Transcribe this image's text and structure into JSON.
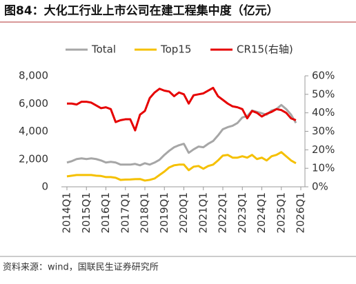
{
  "chart_data": {
    "type": "line",
    "title": "图84：大化工行业上市公司在建工程集中度（亿元）",
    "source": "资料来源：wind，国联民生证券研究所",
    "categories": [
      "2014Q1",
      null,
      null,
      null,
      "2015Q1",
      null,
      null,
      null,
      "2016Q1",
      null,
      null,
      null,
      "2017Q1",
      null,
      null,
      null,
      "2018Q1",
      null,
      null,
      null,
      "2019Q1",
      null,
      null,
      null,
      "2020Q1",
      null,
      null,
      null,
      "2021Q1",
      null,
      null,
      null,
      "2022Q1",
      null,
      null,
      null,
      "2023Q1",
      null,
      null,
      null,
      "2024Q1",
      null,
      null,
      null,
      "2025Q1",
      null,
      null,
      null,
      "2026Q1"
    ],
    "series": [
      {
        "name": "Total",
        "color": "#a6a6a6",
        "values": [
          1750,
          1850,
          2000,
          2050,
          2000,
          2050,
          2000,
          1900,
          1750,
          1800,
          1750,
          1600,
          1600,
          1600,
          1650,
          1550,
          1700,
          1600,
          1750,
          1950,
          2300,
          2600,
          2850,
          3000,
          3100,
          2450,
          2700,
          2900,
          2850,
          3100,
          3300,
          3700,
          4150,
          4300,
          4400,
          4600,
          5000,
          5100,
          5500,
          5400,
          5300,
          5200,
          5500,
          5600,
          5900,
          5600,
          5200,
          4600,
          null
        ]
      },
      {
        "name": "Top15",
        "color": "#f5c000",
        "values": [
          750,
          800,
          850,
          850,
          850,
          850,
          800,
          780,
          700,
          700,
          650,
          500,
          520,
          530,
          550,
          560,
          450,
          500,
          600,
          850,
          1100,
          1400,
          1550,
          1600,
          1600,
          1200,
          1450,
          1500,
          1300,
          1500,
          1600,
          1900,
          2250,
          2300,
          2100,
          2100,
          2200,
          2100,
          2300,
          2000,
          2100,
          1900,
          2200,
          2300,
          2500,
          2200,
          1900,
          1700,
          null
        ]
      },
      {
        "name": "CR15(右轴)",
        "color": "#e60000",
        "axis": "y2",
        "values": [
          45,
          45,
          44.5,
          46,
          46,
          45.5,
          44,
          42.5,
          43,
          42,
          35,
          36,
          36.5,
          36.5,
          30.5,
          39,
          41,
          48,
          51,
          53,
          52,
          51.5,
          49,
          51,
          50,
          45,
          49.5,
          50,
          50.5,
          52,
          53.5,
          49,
          47,
          45,
          43.5,
          43,
          42,
          37,
          41,
          40,
          38,
          39.5,
          40.5,
          42,
          41.5,
          40,
          37,
          36,
          null
        ]
      }
    ],
    "ylim": [
      0,
      8000
    ],
    "yticks": [
      0,
      {
        "value": 2000,
        "label": "2,000"
      },
      {
        "value": 4000,
        "label": "4,000"
      },
      {
        "value": 6000,
        "label": "6,000"
      },
      {
        "value": 8000,
        "label": "8,000"
      }
    ],
    "y2lim": [
      0,
      60
    ],
    "y2ticks": [
      {
        "value": 0,
        "label": "0%"
      },
      {
        "value": 10,
        "label": "10%"
      },
      {
        "value": 20,
        "label": "20%"
      },
      {
        "value": 30,
        "label": "30%"
      },
      {
        "value": 40,
        "label": "40%"
      },
      {
        "value": 50,
        "label": "50%"
      },
      {
        "value": 60,
        "label": "60%"
      }
    ],
    "grid": false
  }
}
